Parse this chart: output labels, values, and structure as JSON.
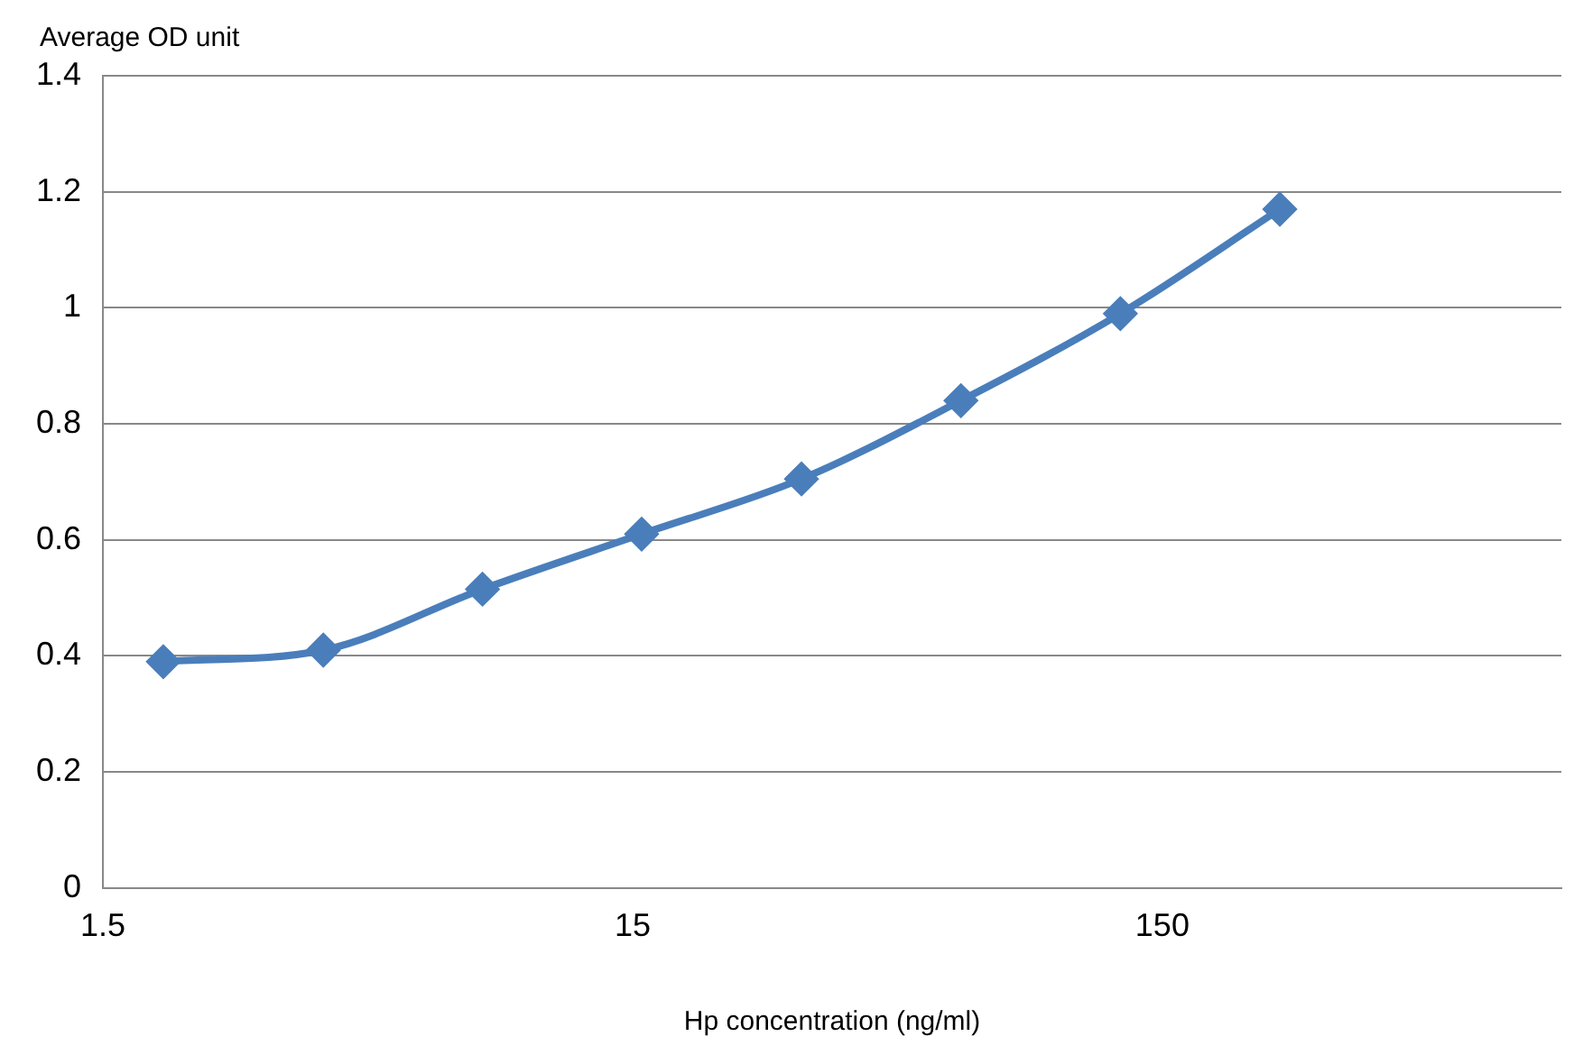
{
  "chart_data": {
    "type": "line",
    "xlabel": "Hp concentration (ng/ml)",
    "ylabel": "Average OD unit",
    "log": "x",
    "x": [
      1.95,
      3.91,
      7.81,
      15.6,
      31.25,
      62.5,
      125,
      250
    ],
    "series": [
      {
        "color": "#4a7ebb",
        "values": [
          0.39,
          0.41,
          0.515,
          0.61,
          0.705,
          0.84,
          0.99,
          1.17
        ]
      }
    ],
    "xlim": [
      1.5,
      850
    ],
    "xticks": [
      1.5,
      15,
      150
    ],
    "ylim": [
      0,
      1.4
    ],
    "yticks": [
      0,
      0.2,
      0.4,
      0.6,
      0.8,
      1,
      1.2,
      1.4
    ],
    "grid": "y",
    "legend": false,
    "marker": "diamond",
    "line_style": "solid"
  }
}
